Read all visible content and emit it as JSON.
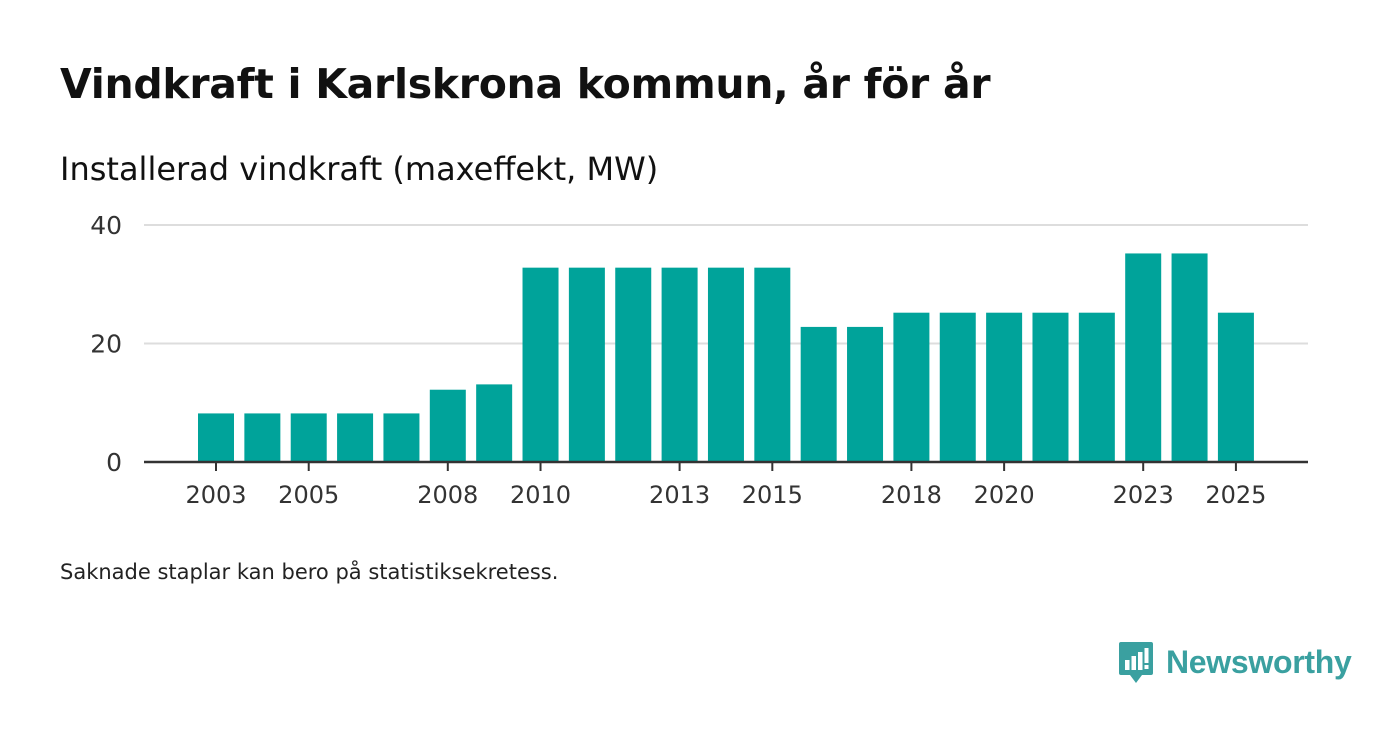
{
  "header": {
    "title": "Vindkraft i Karlskrona kommun, år för år",
    "subtitle": "Installerad vindkraft (maxeffekt, MW)"
  },
  "footnote": "Saknade staplar kan bero på statistiksekretess.",
  "brand": {
    "name": "Newsworthy",
    "icon": "newsworthy-logo-icon",
    "color": "#3aa0a0"
  },
  "chart_data": {
    "type": "bar",
    "title": "Vindkraft i Karlskrona kommun, år för år",
    "ylabel": "Installerad vindkraft (maxeffekt, MW)",
    "xlabel": "",
    "categories": [
      2003,
      2004,
      2005,
      2006,
      2007,
      2008,
      2009,
      2010,
      2011,
      2012,
      2013,
      2014,
      2015,
      2016,
      2017,
      2018,
      2019,
      2020,
      2021,
      2022,
      2023,
      2024,
      2025
    ],
    "values": [
      8.2,
      8.2,
      8.2,
      8.2,
      8.2,
      12.2,
      13.1,
      32.8,
      32.8,
      32.8,
      32.8,
      32.8,
      32.8,
      22.8,
      22.8,
      25.2,
      25.2,
      25.2,
      25.2,
      25.2,
      35.2,
      35.2,
      25.2
    ],
    "x_tick_labels": [
      "2003",
      "2005",
      "2008",
      "2010",
      "2013",
      "2015",
      "2018",
      "2020",
      "2023",
      "2025"
    ],
    "y_ticks": [
      0,
      20,
      40
    ],
    "ylim": [
      0,
      40
    ],
    "grid": true,
    "bar_color": "#00a39a"
  }
}
